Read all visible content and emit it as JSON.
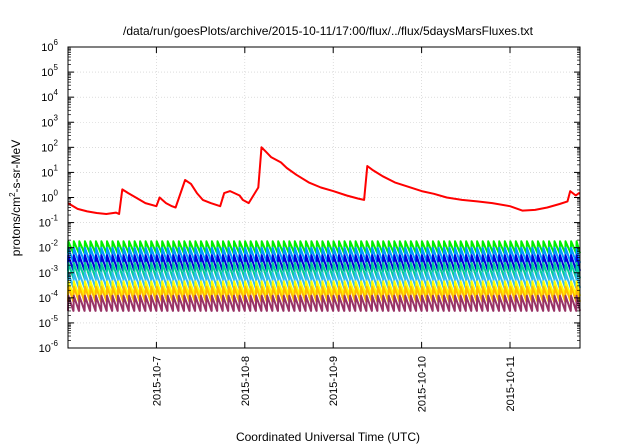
{
  "chart_data": {
    "type": "line",
    "title": "/data/run/goesPlots/archive/2015-10-11/17:00/flux/../flux/5daysMarsFluxes.txt",
    "xlabel": "Coordinated Universal Time (UTC)",
    "ylabel": "protons/cm2-s-sr-MeV",
    "ylabel_parts": {
      "base": "protons/cm",
      "sup": "2",
      "rest": "-s-sr-MeV"
    },
    "yscale": "log",
    "ylim": [
      1e-06,
      1000000.0
    ],
    "xlim": [
      "2015-10-06T00:00",
      "2015-10-11T19:00"
    ],
    "grid": true,
    "y_ticks": [
      {
        "value": 1e-06,
        "mantissa": "10",
        "exp": "-6"
      },
      {
        "value": 1e-05,
        "mantissa": "10",
        "exp": "-5"
      },
      {
        "value": 0.0001,
        "mantissa": "10",
        "exp": "-4"
      },
      {
        "value": 0.001,
        "mantissa": "10",
        "exp": "-3"
      },
      {
        "value": 0.01,
        "mantissa": "10",
        "exp": "-2"
      },
      {
        "value": 0.1,
        "mantissa": "10",
        "exp": "-1"
      },
      {
        "value": 1,
        "mantissa": "10",
        "exp": "0"
      },
      {
        "value": 10.0,
        "mantissa": "10",
        "exp": "1"
      },
      {
        "value": 100.0,
        "mantissa": "10",
        "exp": "2"
      },
      {
        "value": 1000.0,
        "mantissa": "10",
        "exp": "3"
      },
      {
        "value": 10000.0,
        "mantissa": "10",
        "exp": "4"
      },
      {
        "value": 100000.0,
        "mantissa": "10",
        "exp": "5"
      },
      {
        "value": 1000000.0,
        "mantissa": "10",
        "exp": "6"
      }
    ],
    "x_ticks": [
      {
        "value": "2015-10-07T00:00",
        "label": "2015-10-7"
      },
      {
        "value": "2015-10-08T00:00",
        "label": "2015-10-8"
      },
      {
        "value": "2015-10-09T00:00",
        "label": "2015-10-9"
      },
      {
        "value": "2015-10-10T00:00",
        "label": "2015-10-10"
      },
      {
        "value": "2015-10-11T00:00",
        "label": "2015-10-11"
      }
    ],
    "series": [
      {
        "color": "#ff0000",
        "x": [
          "2015-10-06T00:00",
          "2015-10-06T02:36",
          "2015-10-06T05:12",
          "2015-10-06T07:48",
          "2015-10-06T10:24",
          "2015-10-06T13:00",
          "2015-10-06T13:52",
          "2015-10-06T14:44",
          "2015-10-06T16:20",
          "2015-10-06T18:24",
          "2015-10-06T21:00",
          "2015-10-07T00:00",
          "2015-10-07T00:52",
          "2015-10-07T02:36",
          "2015-10-07T04:12",
          "2015-10-07T05:12",
          "2015-10-07T07:48",
          "2015-10-07T09:24",
          "2015-10-07T11:00",
          "2015-10-07T12:36",
          "2015-10-07T14:44",
          "2015-10-07T17:20",
          "2015-10-07T18:24",
          "2015-10-07T20:00",
          "2015-10-07T22:36",
          "2015-10-07T23:28",
          "2015-10-08T01:04",
          "2015-10-08T03:40",
          "2015-10-08T04:32",
          "2015-10-08T05:36",
          "2015-10-08T07:12",
          "2015-10-08T09:48",
          "2015-10-08T11:24",
          "2015-10-08T14:00",
          "2015-10-08T17:20",
          "2015-10-08T20:40",
          "2015-10-09T00:00",
          "2015-10-09T03:40",
          "2015-10-09T06:48",
          "2015-10-09T08:24",
          "2015-10-09T09:16",
          "2015-10-09T10:52",
          "2015-10-09T13:28",
          "2015-10-09T16:44",
          "2015-10-09T20:00",
          "2015-10-10T00:00",
          "2015-10-10T03:20",
          "2015-10-10T06:48",
          "2015-10-10T10:56",
          "2015-10-10T15:04",
          "2015-10-10T19:12",
          "2015-10-11T00:00",
          "2015-10-11T03:20",
          "2015-10-11T06:48",
          "2015-10-11T10:08",
          "2015-10-11T13:28",
          "2015-10-11T15:36",
          "2015-10-11T16:20",
          "2015-10-11T17:52",
          "2015-10-11T18:44",
          "2015-10-11T19:00"
        ],
        "values": [
          0.6,
          0.35,
          0.28,
          0.24,
          0.22,
          0.25,
          0.22,
          2.1,
          1.5,
          1.0,
          0.6,
          0.45,
          1.0,
          0.6,
          0.45,
          0.4,
          5.0,
          3.5,
          1.5,
          0.8,
          0.6,
          0.45,
          1.5,
          1.8,
          1.2,
          0.8,
          0.6,
          2.5,
          100,
          70,
          40,
          25,
          15,
          8,
          4,
          2.5,
          1.8,
          1.2,
          0.9,
          0.8,
          18,
          12,
          7,
          4,
          2.8,
          1.8,
          1.4,
          1.0,
          0.8,
          0.7,
          0.6,
          0.45,
          0.3,
          0.32,
          0.4,
          0.55,
          0.7,
          1.8,
          1.2,
          1.5,
          1.4
        ]
      },
      {
        "color": "#00ee00",
        "lo": 0.006,
        "hi": 0.018
      },
      {
        "color": "#0099ff",
        "lo": 0.0025,
        "hi": 0.01
      },
      {
        "color": "#0000dd",
        "lo": 0.0012,
        "hi": 0.005
      },
      {
        "color": "#00cc99",
        "lo": 0.0006,
        "hi": 0.0025
      },
      {
        "color": "#33bbee",
        "lo": 0.00025,
        "hi": 0.001
      },
      {
        "color": "#ffff00",
        "lo": 0.00012,
        "hi": 0.00045
      },
      {
        "color": "#ffbb00",
        "lo": 7e-05,
        "hi": 0.00028
      },
      {
        "color": "#993366",
        "lo": 3e-05,
        "hi": 0.00012
      }
    ],
    "periodic_series_period_hours": 1.5
  }
}
